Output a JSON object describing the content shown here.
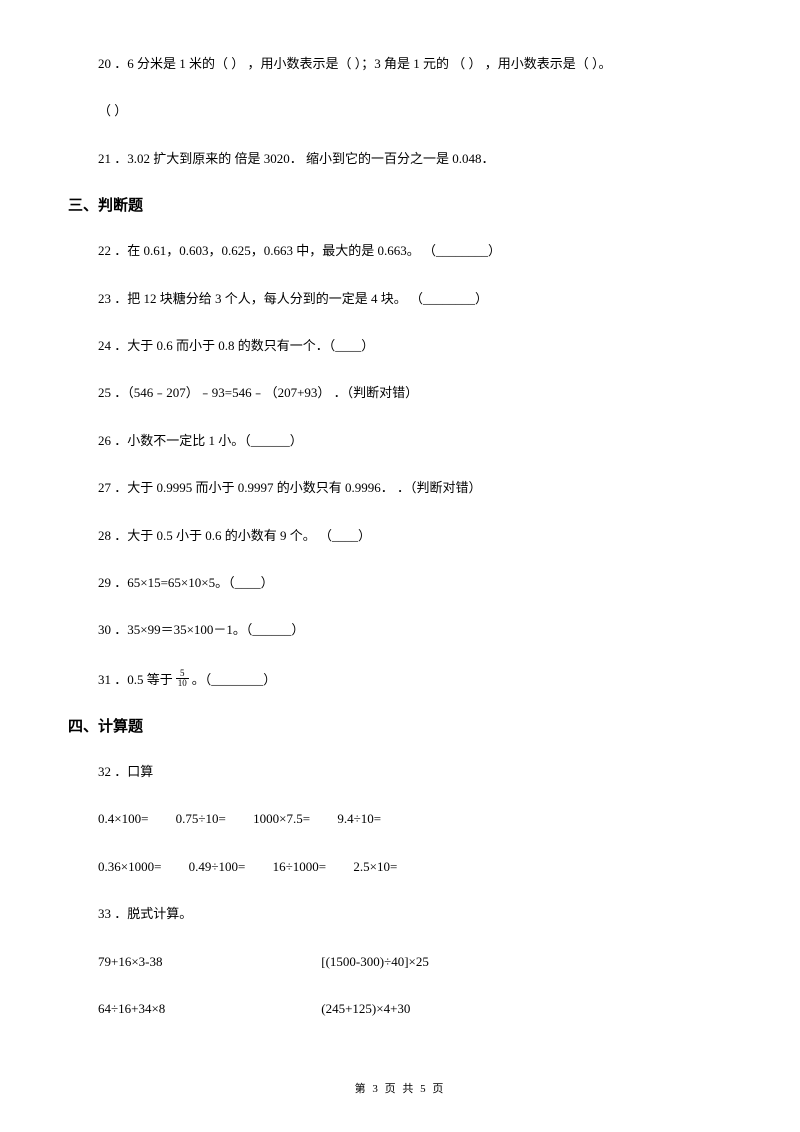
{
  "q20": {
    "text_a": "20 ．6 分米是 1 米的（      ） ，用小数表示是（      ）；3 角是 1 元的 （      ） ，用小数表示是（      ）。",
    "text_b": "（        ）"
  },
  "q21": "21 ．3.02 扩大到原来的          倍是 3020．          缩小到它的一百分之一是 0.048．",
  "section3": "三、判断题",
  "q22": "22 ．在 0.61，0.603，0.625，0.663 中，最大的是 0.663。      （________）",
  "q23": "23 ．把 12 块糖分给 3 个人，每人分到的一定是 4 块。  （________）",
  "q24": "24 ．大于 0.6 而小于 0.8 的数只有一个．（____）",
  "q25": "25 ．（546﹣207）﹣93=546﹣（207+93）      ．（判断对错）",
  "q26": "26 ．小数不一定比 1 小。（______）",
  "q27": "27 ．大于 0.9995 而小于 0.9997 的小数只有 0.9996．          ．（判断对错）",
  "q28": "28 ．大于 0.5 小于 0.6 的小数有 9 个。      （____）",
  "q29": "29 ．65×15=65×10×5。（____）",
  "q30": "30 ．35×99＝35×100－1。（______）",
  "q31_a": "31 ．0.5 等于",
  "q31_num": "5",
  "q31_den": "10",
  "q31_b": "。（________）",
  "section4": "四、计算题",
  "q32": "32 ．口算",
  "calc_row1": {
    "c1": "0.4×100=",
    "c2": "0.75÷10=",
    "c3": "1000×7.5=",
    "c4": "9.4÷10="
  },
  "calc_row2": {
    "c1": "0.36×1000=",
    "c2": "0.49÷100=",
    "c3": "16÷1000=",
    "c4": "2.5×10="
  },
  "q33": "33 ．脱式计算。",
  "pair1": {
    "left": "79+16×3-38",
    "right": "[(1500-300)÷40]×25"
  },
  "pair2": {
    "left": "64÷16+34×8",
    "right": "(245+125)×4+30"
  },
  "footer": "第 3 页 共 5 页"
}
